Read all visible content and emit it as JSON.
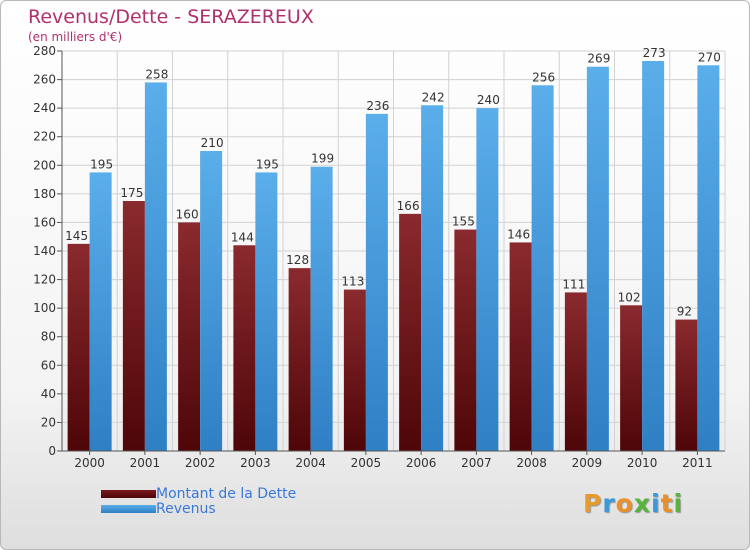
{
  "chart_data": {
    "type": "bar",
    "title": "Revenus/Dette - SERAZEREUX",
    "subtitle": "(en milliers d'€)",
    "categories": [
      "2000",
      "2001",
      "2002",
      "2003",
      "2004",
      "2005",
      "2006",
      "2007",
      "2008",
      "2009",
      "2010",
      "2011"
    ],
    "series": [
      {
        "name": "Montant de la Dette",
        "color": "#7a1a1e",
        "values": [
          145,
          175,
          160,
          144,
          128,
          113,
          166,
          155,
          146,
          111,
          102,
          92
        ]
      },
      {
        "name": "Revenus",
        "color": "#4a9de0",
        "values": [
          195,
          258,
          210,
          195,
          199,
          236,
          242,
          240,
          256,
          269,
          273,
          270
        ]
      }
    ],
    "ylim": [
      0,
      280
    ],
    "yticks": [
      0,
      20,
      40,
      60,
      80,
      100,
      120,
      140,
      160,
      180,
      200,
      220,
      240,
      260,
      280
    ],
    "grid": true,
    "legend_position": "bottom-left"
  },
  "logo": {
    "text": "Proxiti",
    "letters": [
      {
        "ch": "P",
        "color": "#e89a2a"
      },
      {
        "ch": "r",
        "color": "#3a9ad9"
      },
      {
        "ch": "o",
        "color": "#e8902a"
      },
      {
        "ch": "x",
        "color": "#58b33a"
      },
      {
        "ch": "i",
        "color": "#3a9ad9"
      },
      {
        "ch": "t",
        "color": "#e8902a"
      },
      {
        "ch": "i",
        "color": "#58b33a"
      }
    ]
  }
}
